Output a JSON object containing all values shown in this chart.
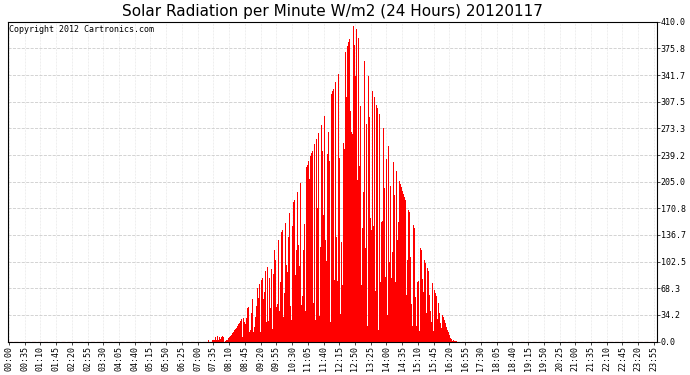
{
  "title": "Solar Radiation per Minute W/m2 (24 Hours) 20120117",
  "copyright_text": "Copyright 2012 Cartronics.com",
  "bar_color": "#ff0000",
  "background_color": "#ffffff",
  "plot_bg_color": "#ffffff",
  "ymin": 0.0,
  "ymax": 410.0,
  "yticks": [
    0.0,
    34.2,
    68.3,
    102.5,
    136.7,
    170.8,
    205.0,
    239.2,
    273.3,
    307.5,
    341.7,
    375.8,
    410.0
  ],
  "grid_color": "#cccccc",
  "baseline_color": "#ff0000",
  "title_fontsize": 11,
  "tick_fontsize": 6,
  "copyright_fontsize": 6,
  "xtick_interval": 35
}
